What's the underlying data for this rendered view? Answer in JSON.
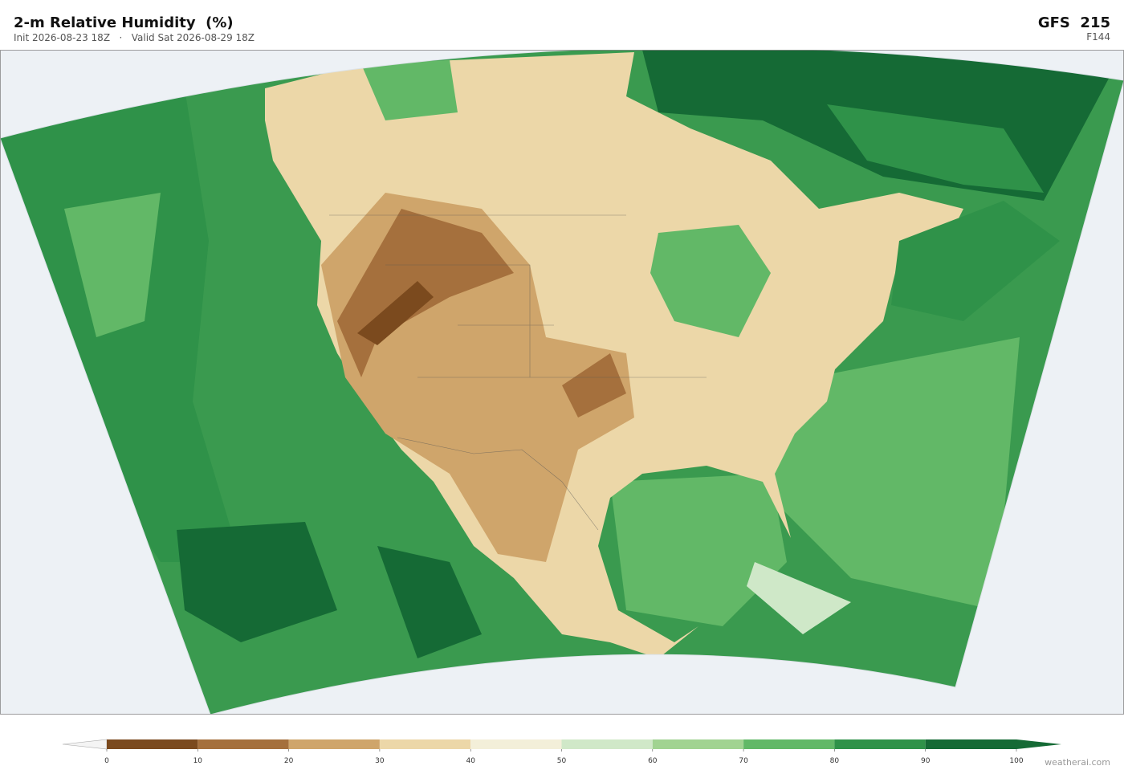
{
  "header": {
    "title": "2-m Relative Humidity  (%)",
    "subtitle": "Init 2026-08-23 18Z   ·   Valid Sat 2026-08-29 18Z",
    "model": "GFS  215",
    "forecast_hour": "F144"
  },
  "colorbar": {
    "ticks": [
      0,
      10,
      20,
      30,
      40,
      50,
      60,
      70,
      80,
      90,
      100
    ],
    "colors": [
      "#7b4a1e",
      "#a5703d",
      "#cfa56b",
      "#ecd7a8",
      "#f3efd9",
      "#d0e8c8",
      "#a1d391",
      "#62b867",
      "#2f9249",
      "#156a35"
    ],
    "under_color": "#f4f4f4",
    "over_color": "#156a35"
  },
  "watermark": "weatherai.com"
}
